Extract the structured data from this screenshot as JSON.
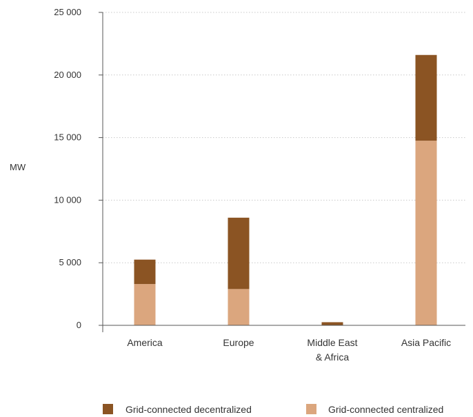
{
  "chart_data": {
    "type": "bar",
    "stacked": true,
    "categories": [
      [
        "America"
      ],
      [
        "Europe"
      ],
      [
        "Middle East",
        "& Africa"
      ],
      [
        "Asia Pacific"
      ]
    ],
    "series": [
      {
        "name": "Grid-connected centralized",
        "values": [
          3300,
          2900,
          0,
          14750
        ],
        "color": "#dba67e"
      },
      {
        "name": "Grid-connected decentralized",
        "values": [
          1950,
          5700,
          250,
          6850
        ],
        "color": "#8b5423"
      }
    ],
    "ylabel": "MW",
    "ylim": [
      0,
      25000
    ],
    "yticks": [
      0,
      5000,
      10000,
      15000,
      20000,
      25000
    ],
    "ytick_labels": [
      "0",
      "5 000",
      "10 000",
      "15 000",
      "20 000",
      "25 000"
    ],
    "grid": true,
    "legend_position": "bottom",
    "legend_order": [
      "Grid-connected decentralized",
      "Grid-connected centralized"
    ]
  }
}
